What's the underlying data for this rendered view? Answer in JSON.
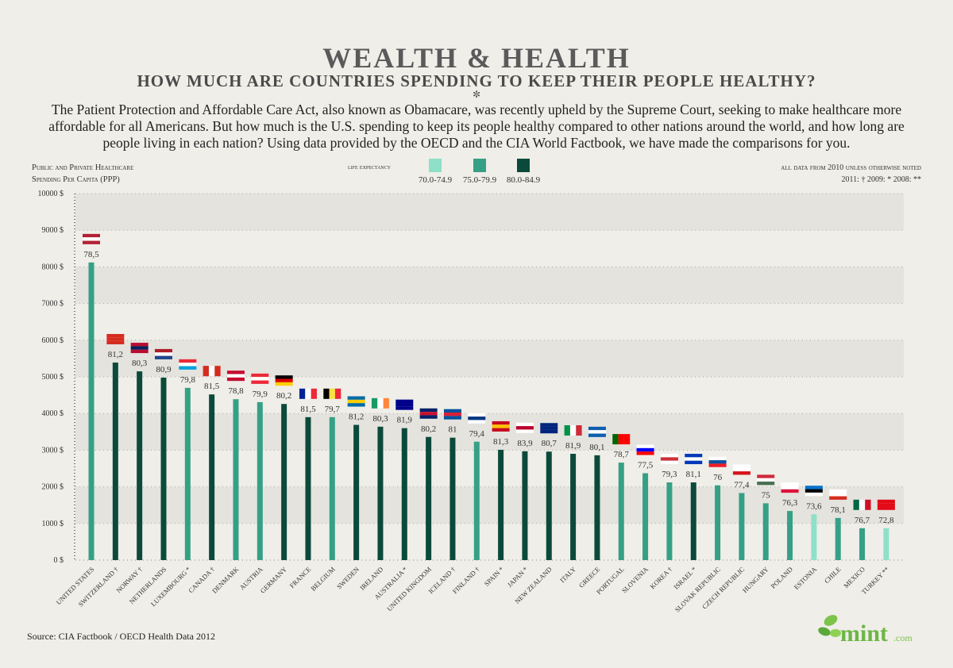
{
  "header": {
    "title": "WEALTH & HEALTH",
    "subtitle": "HOW MUCH ARE COUNTRIES SPENDING TO KEEP THEIR PEOPLE HEALTHY?",
    "ornament": "✼",
    "intro": "The Patient Protection and Affordable Care Act, also known as Obamacare, was recently upheld by the Supreme Court, seeking to make healthcare more affordable for all Americans. But how much is the U.S. spending to keep its people healthy compared to other nations around the world, and how long are people living in each nation? Using data provided by the OECD and the CIA World Factbook, we have made the comparisons for you."
  },
  "footer": {
    "source": "Source: CIA Factbook / OECD Health Data 2012",
    "logo": "mint.com"
  },
  "chart_data": {
    "type": "bar",
    "ylabel_line1": "Public and Private Healthcare",
    "ylabel_line2": "Spending Per Capita (PPP)",
    "ylim": [
      0,
      10000
    ],
    "yticks": [
      "0 $",
      "1000 $",
      "2000 $",
      "3000 $",
      "4000 $",
      "5000 $",
      "6000 $",
      "7000 $",
      "8000 $",
      "9000 $",
      "10000 $"
    ],
    "grid": true,
    "legend": {
      "title": "life expectancy",
      "placement": "top-center",
      "items": [
        {
          "label": "70.0-74.9",
          "color": "#8ee0c8"
        },
        {
          "label": "75.0-79.9",
          "color": "#35a085"
        },
        {
          "label": "80.0-84.9",
          "color": "#0b4a3a"
        }
      ]
    },
    "notes": {
      "line1": "all data from 2010  unless otherwise noted",
      "line2": "2011: †   2009: *   2008: **"
    },
    "countries": [
      {
        "name": "UNITED STATES",
        "spending": 8120,
        "life": "78,5",
        "flag": [
          "#b22234",
          "#fff",
          "#b22234"
        ]
      },
      {
        "name": "SWITZERLAND †",
        "spending": 5390,
        "life": "81,2",
        "flag": [
          "#d52b1e",
          "#d52b1e",
          "#d52b1e"
        ]
      },
      {
        "name": "NORWAY †",
        "spending": 5150,
        "life": "80,3",
        "flag": [
          "#ba0c2f",
          "#00205b",
          "#ba0c2f"
        ]
      },
      {
        "name": "NETHERLANDS",
        "spending": 4980,
        "life": "80,9",
        "flag": [
          "#ae1c28",
          "#fff",
          "#21468b"
        ]
      },
      {
        "name": "LUXEMBOURG *",
        "spending": 4700,
        "life": "79,8",
        "flag": [
          "#ed2939",
          "#fff",
          "#00a1de"
        ]
      },
      {
        "name": "CANADA †",
        "spending": 4520,
        "life": "81,5",
        "flag": [
          "#d52b1e",
          "#fff",
          "#d52b1e"
        ],
        "vertical": true
      },
      {
        "name": "DENMARK",
        "spending": 4390,
        "life": "78,8",
        "flag": [
          "#c60c30",
          "#fff",
          "#c60c30"
        ]
      },
      {
        "name": "AUSTRIA",
        "spending": 4310,
        "life": "79,9",
        "flag": [
          "#ed2939",
          "#fff",
          "#ed2939"
        ]
      },
      {
        "name": "GERMANY",
        "spending": 4260,
        "life": "80,2",
        "flag": [
          "#000",
          "#dd0000",
          "#ffce00"
        ]
      },
      {
        "name": "FRANCE",
        "spending": 3900,
        "life": "81,5",
        "flag": [
          "#002395",
          "#fff",
          "#ed2939"
        ],
        "vertical": true
      },
      {
        "name": "BELGIUM",
        "spending": 3900,
        "life": "79,7",
        "flag": [
          "#000",
          "#fae042",
          "#ed2939"
        ],
        "vertical": true
      },
      {
        "name": "SWEDEN",
        "spending": 3690,
        "life": "81,2",
        "flag": [
          "#006aa7",
          "#fecc00",
          "#006aa7"
        ]
      },
      {
        "name": "IRELAND",
        "spending": 3640,
        "life": "80,3",
        "flag": [
          "#169b62",
          "#fff",
          "#ff883e"
        ],
        "vertical": true
      },
      {
        "name": "AUSTRALIA *",
        "spending": 3600,
        "life": "81,9",
        "flag": [
          "#00008b",
          "#00008b",
          "#00008b"
        ]
      },
      {
        "name": "UNITED KINGDOM",
        "spending": 3360,
        "life": "80,2",
        "flag": [
          "#012169",
          "#c8102e",
          "#012169"
        ]
      },
      {
        "name": "ICELAND †",
        "spending": 3340,
        "life": "81",
        "flag": [
          "#02529c",
          "#dc1e35",
          "#02529c"
        ]
      },
      {
        "name": "FINLAND †",
        "spending": 3230,
        "life": "79,4",
        "flag": [
          "#fff",
          "#003580",
          "#fff"
        ]
      },
      {
        "name": "SPAIN *",
        "spending": 3010,
        "life": "81,3",
        "flag": [
          "#c60b1e",
          "#ffc400",
          "#c60b1e"
        ]
      },
      {
        "name": "JAPAN *",
        "spending": 2970,
        "life": "83,9",
        "flag": [
          "#fff",
          "#bc002d",
          "#fff"
        ]
      },
      {
        "name": "NEW ZEALAND",
        "spending": 2960,
        "life": "80,7",
        "flag": [
          "#00247d",
          "#00247d",
          "#00247d"
        ]
      },
      {
        "name": "ITALY",
        "spending": 2900,
        "life": "81,9",
        "flag": [
          "#009246",
          "#fff",
          "#ce2b37"
        ],
        "vertical": true
      },
      {
        "name": "GREECE",
        "spending": 2860,
        "life": "80,1",
        "flag": [
          "#0d5eaf",
          "#fff",
          "#0d5eaf"
        ]
      },
      {
        "name": "PORTUGAL",
        "spending": 2660,
        "life": "78,7",
        "flag": [
          "#006600",
          "#ff0000",
          "#ff0000"
        ],
        "vertical": true
      },
      {
        "name": "SLOVENIA",
        "spending": 2370,
        "life": "77,5",
        "flag": [
          "#fff",
          "#0000ff",
          "#ff0000"
        ]
      },
      {
        "name": "KOREA †",
        "spending": 2120,
        "life": "79,3",
        "flag": [
          "#fff",
          "#cd2e3a",
          "#fff"
        ]
      },
      {
        "name": "ISRAEL *",
        "spending": 2120,
        "life": "81,1",
        "flag": [
          "#0038b8",
          "#fff",
          "#0038b8"
        ]
      },
      {
        "name": "SLOVAK REPUBLIC",
        "spending": 2040,
        "life": "76",
        "flag": [
          "#fff",
          "#0b4ea2",
          "#ee1c25"
        ]
      },
      {
        "name": "CZECH REPUBLIC",
        "spending": 1830,
        "life": "77,4",
        "flag": [
          "#fff",
          "#fff",
          "#d7141a"
        ]
      },
      {
        "name": "HUNGARY",
        "spending": 1550,
        "life": "75",
        "flag": [
          "#ce2939",
          "#fff",
          "#477050"
        ]
      },
      {
        "name": "POLAND",
        "spending": 1340,
        "life": "76,3",
        "flag": [
          "#fff",
          "#fff",
          "#dc143c"
        ]
      },
      {
        "name": "ESTONIA",
        "spending": 1250,
        "life": "73,6",
        "flag": [
          "#0072ce",
          "#000",
          "#fff"
        ]
      },
      {
        "name": "CHILE",
        "spending": 1150,
        "life": "78,1",
        "flag": [
          "#fff",
          "#fff",
          "#d52b1e"
        ]
      },
      {
        "name": "MEXICO",
        "spending": 870,
        "life": "76,7",
        "flag": [
          "#006847",
          "#fff",
          "#ce1126"
        ],
        "vertical": true
      },
      {
        "name": "TURKEY **",
        "spending": 870,
        "life": "72,8",
        "flag": [
          "#e30a17",
          "#e30a17",
          "#e30a17"
        ]
      }
    ]
  }
}
